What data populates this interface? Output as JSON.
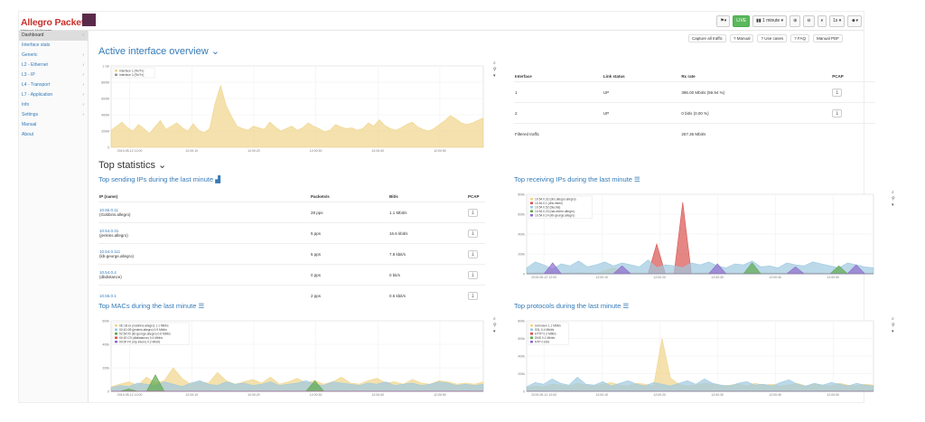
{
  "header": {
    "brand": "Allegro Packets",
    "tagline": "Network Multimeter",
    "buttons": [
      "⚑▾",
      "LIVE",
      "▮▮ 1 minute ▾",
      "⊕",
      "⊖",
      "⏸",
      "1s ▾",
      "☻▾"
    ]
  },
  "sidebar": {
    "items": [
      {
        "label": "Dashboard",
        "chev": "‹",
        "active": true
      },
      {
        "label": "Interface stats",
        "chev": ""
      },
      {
        "label": "Generic",
        "chev": "›"
      },
      {
        "label": "L2 - Ethernet",
        "chev": "›"
      },
      {
        "label": "L3 - IP",
        "chev": "›"
      },
      {
        "label": "L4 - Transport",
        "chev": "›"
      },
      {
        "label": "L7 - Application",
        "chev": "›"
      },
      {
        "label": "Info",
        "chev": "›"
      },
      {
        "label": "Settings",
        "chev": "›"
      },
      {
        "label": "Manual",
        "chev": ""
      },
      {
        "label": "About",
        "chev": ""
      }
    ]
  },
  "header_buttons": [
    "Capture all traffic",
    "? Manual",
    "? Use cases",
    "? FAQ",
    "Manual PDF"
  ],
  "overview": {
    "title": "Active interface overview ⌄",
    "legend": [
      "Interface 1 (Rx/Tx)",
      "Interface 2 (Rx/Tx)"
    ],
    "y_ticks": [
      "1 Gb",
      "800M",
      "600M",
      "400M",
      "200M",
      "0"
    ],
    "x_ticks": [
      "2019-05-12 12:00",
      "12:00:10",
      "12:00:20",
      "12:00:30",
      "12:00:40",
      "12:00:50"
    ],
    "columns": [
      "Interface",
      "Link status",
      "Rx rate",
      "PCAP"
    ],
    "rows": [
      {
        "iface": "1",
        "link": "UP",
        "rate": "395.00 Mbit/s (59.94 %)",
        "pcap": "⤓"
      },
      {
        "iface": "2",
        "link": "UP",
        "rate": "0 bit/s (0.00 %)",
        "pcap": "⤓"
      }
    ],
    "filtered_label": "Filtered traffic",
    "filtered_rate": "257.36 Mbit/s",
    "chart_data": {
      "type": "area",
      "series": [
        {
          "name": "Interface 1 (Rx/Tx)",
          "color": "#f0d48a",
          "values": [
            210,
            260,
            310,
            240,
            200,
            280,
            230,
            170,
            250,
            330,
            220,
            260,
            300,
            240,
            200,
            290,
            210,
            180,
            230,
            540,
            760,
            520,
            380,
            260,
            230,
            210,
            260,
            240,
            220,
            310,
            250,
            200,
            230,
            260,
            210,
            240,
            300,
            260,
            230,
            190,
            210,
            280,
            250,
            230,
            240,
            210,
            230,
            300,
            260,
            340,
            270,
            230,
            210,
            240,
            280,
            310,
            250,
            220,
            200,
            230,
            280,
            330,
            390,
            350,
            300,
            280,
            300,
            330,
            360
          ]
        }
      ],
      "ylim": [
        0,
        1000
      ]
    }
  },
  "top_stats": {
    "title": "Top statistics ⌄",
    "sending": {
      "title": "Top sending IPs during the last minute",
      "columns": [
        "IP (name)",
        "Packets/s",
        "Bit/s",
        "PCAP"
      ],
      "rows": [
        {
          "ip": "10.55.0.11",
          "name": "(Gobbins.allegro)",
          "pps": "28 pps",
          "bps": "1.1 Mbit/s"
        },
        {
          "ip": "10.54.0.31",
          "name": "(jenkins.allegro)",
          "pps": "5 pps",
          "bps": "16.6 kbit/s"
        },
        {
          "ip": "10.54.0.111",
          "name": "(kb-george.allegro)",
          "pps": "5 pps",
          "bps": "7.8 kbit/s"
        },
        {
          "ip": "10.54.0.4",
          "name": "(dbdistance)",
          "pps": "0 pps",
          "bps": "0 bit/s"
        },
        {
          "ip": "10.55.0.1",
          "name": "",
          "pps": "2 pps",
          "bps": "0.5 kbit/s"
        }
      ]
    },
    "receiving": {
      "title": "Top receiving IPs during the last minute",
      "legend": [
        "10.54.0.32 (dns.allegro.allegro)",
        "10.54.0.1 (dns.intern)",
        "10.54.0.52 (bla.bla)",
        "10.54.0.23 (nas.intern.allegro)",
        "10.54.0.14 (kb-george.allegro)"
      ],
      "y_ticks": [
        "800k",
        "600k",
        "400k",
        "200k",
        "0"
      ],
      "x_ticks": [
        "2019-05-12 12:00",
        "12:00:10",
        "12:00:20",
        "12:00:30",
        "12:00:40",
        "12:00:50"
      ],
      "chart_data": {
        "type": "area",
        "series": [
          {
            "name": "10.54.0.32",
            "color": "#f0d48a",
            "values": [
              5,
              8,
              12,
              10,
              6,
              9,
              14,
              8,
              5,
              30,
              60,
              20,
              10,
              8,
              6,
              5,
              7,
              9,
              6,
              5,
              8,
              10,
              12,
              9,
              7,
              6,
              8,
              10,
              8,
              6,
              7,
              9,
              11,
              8,
              6,
              5,
              7,
              9,
              8,
              6,
              5
            ]
          },
          {
            "name": "10.54.0.1",
            "color": "#d9534f",
            "values": [
              0,
              0,
              0,
              0,
              0,
              0,
              0,
              0,
              0,
              0,
              0,
              0,
              0,
              0,
              0,
              300,
              0,
              0,
              720,
              0,
              0,
              0,
              0,
              0,
              0,
              0,
              0,
              0,
              0,
              0,
              0,
              0,
              0,
              0,
              0,
              0,
              0,
              0,
              0,
              0,
              0
            ]
          },
          {
            "name": "10.54.0.52",
            "color": "#9ec9e0",
            "values": [
              60,
              120,
              90,
              50,
              100,
              80,
              130,
              70,
              90,
              120,
              80,
              110,
              90,
              70,
              140,
              60,
              90,
              80,
              60,
              110,
              90,
              120,
              80,
              60,
              100,
              90,
              130,
              70,
              80,
              60,
              110,
              90,
              80,
              120,
              100,
              80,
              60,
              110,
              90,
              70,
              60
            ]
          },
          {
            "name": "10.54.0.23",
            "color": "#5fa84e",
            "values": [
              0,
              0,
              0,
              0,
              0,
              0,
              0,
              0,
              0,
              0,
              0,
              0,
              0,
              0,
              0,
              0,
              0,
              0,
              0,
              0,
              0,
              0,
              0,
              0,
              0,
              0,
              110,
              0,
              0,
              0,
              0,
              0,
              0,
              0,
              0,
              0,
              80,
              0,
              0,
              0,
              0
            ]
          },
          {
            "name": "10.54.0.14",
            "color": "#8e6ccb",
            "values": [
              0,
              0,
              0,
              110,
              0,
              0,
              0,
              0,
              0,
              0,
              0,
              80,
              0,
              0,
              0,
              0,
              0,
              0,
              0,
              0,
              0,
              0,
              100,
              0,
              0,
              0,
              0,
              0,
              0,
              0,
              0,
              70,
              0,
              0,
              0,
              0,
              0,
              0,
              90,
              0,
              0
            ]
          }
        ],
        "ylim": [
          0,
          800
        ]
      }
    },
    "macs": {
      "title": "Top MACs during the last minute",
      "legend": [
        "0E:1B:xx (Gobbins.allegro) 1.1 Mbit/s",
        "00:1D:09 (jenkins.allegro) 0.9 Mbit/s",
        "52:54:00 (kb-george.allegro) 0.6 Mbit/s",
        "00:1E:C9 (dbdistance) 0.4 Mbit/s",
        "00:0F:F0 (ntp.intern) 0.2 Mbit/s"
      ],
      "y_ticks": [
        "600k",
        "400k",
        "200k",
        "0"
      ],
      "x_ticks": [
        "2019-05-12 12:00",
        "12:00:10",
        "12:00:20",
        "12:00:30",
        "12:00:40",
        "12:00:50"
      ],
      "chart_data": {
        "type": "area",
        "series": [
          {
            "name": "0E:1B",
            "color": "#f0d48a",
            "values": [
              40,
              60,
              80,
              50,
              120,
              70,
              90,
              200,
              110,
              60,
              80,
              70,
              160,
              90,
              60,
              80,
              100,
              70,
              120,
              60,
              80,
              110,
              70,
              90,
              60,
              80,
              120,
              70,
              60,
              90,
              110,
              70,
              80,
              60,
              100,
              70,
              60,
              90,
              80,
              60,
              70,
              60,
              80
            ]
          },
          {
            "name": "00:1D",
            "color": "#9ec9e0",
            "values": [
              30,
              50,
              40,
              70,
              60,
              50,
              80,
              60,
              40,
              70,
              90,
              60,
              50,
              80,
              60,
              70,
              50,
              60,
              80,
              50,
              60,
              70,
              90,
              60,
              50,
              80,
              70,
              60,
              50,
              70,
              60,
              80,
              50,
              60,
              70,
              50,
              60,
              80,
              70,
              50,
              60,
              50,
              60
            ]
          },
          {
            "name": "52:54",
            "color": "#5fa84e",
            "values": [
              0,
              0,
              20,
              0,
              0,
              140,
              0,
              0,
              0,
              0,
              0,
              0,
              0,
              0,
              0,
              0,
              0,
              0,
              0,
              0,
              0,
              0,
              0,
              90,
              0,
              0,
              0,
              0,
              0,
              0,
              0,
              0,
              0,
              0,
              0,
              0,
              0,
              0,
              0,
              0,
              0,
              0,
              0
            ]
          },
          {
            "name": "00:1E",
            "color": "#d9534f",
            "values": [
              0,
              0,
              0,
              0,
              0,
              0,
              0,
              0,
              0,
              0,
              0,
              0,
              0,
              0,
              0,
              0,
              0,
              0,
              0,
              0,
              0,
              0,
              0,
              0,
              0,
              0,
              0,
              0,
              0,
              0,
              0,
              0,
              0,
              0,
              0,
              0,
              0,
              0,
              0,
              0,
              0,
              0,
              0
            ]
          },
          {
            "name": "00:0F",
            "color": "#8e6ccb",
            "values": [
              0,
              0,
              0,
              0,
              0,
              0,
              0,
              0,
              0,
              0,
              0,
              0,
              0,
              0,
              0,
              0,
              0,
              0,
              0,
              0,
              0,
              0,
              0,
              0,
              0,
              0,
              0,
              0,
              0,
              0,
              0,
              0,
              0,
              0,
              0,
              0,
              0,
              0,
              0,
              0,
              0,
              0,
              0
            ]
          }
        ],
        "ylim": [
          0,
          600
        ]
      }
    },
    "protocols": {
      "title": "Top protocols during the last minute",
      "legend": [
        "Unknown 1.1 Mbit/s",
        "SSL 0.4 Mbit/s",
        "HTTP 0.2 Mbit/s",
        "DNS 0.1 Mbit/s",
        "NTP 0 bit/s"
      ],
      "y_ticks": [
        "800k",
        "600k",
        "400k",
        "200k",
        "0"
      ],
      "x_ticks": [
        "2019-05-12 12:00",
        "12:00:10",
        "12:00:20",
        "12:00:30",
        "12:00:40",
        "12:00:50"
      ],
      "chart_data": {
        "type": "area",
        "series": [
          {
            "name": "Unknown",
            "color": "#f0d48a",
            "values": [
              40,
              60,
              50,
              80,
              70,
              60,
              90,
              70,
              60,
              80,
              100,
              70,
              60,
              90,
              80,
              60,
              600,
              150,
              80,
              60,
              70,
              90,
              80,
              60,
              70,
              80,
              60,
              90,
              70,
              80,
              60,
              70,
              90,
              60,
              80,
              70,
              60,
              90,
              70,
              60,
              80,
              70
            ]
          },
          {
            "name": "SSL",
            "color": "#9ec9e0",
            "values": [
              50,
              100,
              80,
              140,
              90,
              70,
              160,
              80,
              70,
              110,
              60,
              90,
              120,
              80,
              60,
              100,
              80,
              60,
              90,
              120,
              80,
              140,
              90,
              70,
              60,
              90,
              110,
              70,
              80,
              60,
              100,
              130,
              80,
              60,
              90,
              70,
              100,
              80,
              60,
              90,
              70,
              60
            ]
          },
          {
            "name": "HTTP",
            "color": "#d9534f",
            "values": [
              0,
              0,
              0,
              0,
              0,
              0,
              0,
              0,
              0,
              0,
              0,
              0,
              0,
              0,
              0,
              0,
              0,
              0,
              0,
              0,
              0,
              0,
              0,
              0,
              0,
              0,
              0,
              0,
              0,
              0,
              0,
              0,
              0,
              0,
              0,
              0,
              0,
              0,
              0,
              0,
              0,
              0
            ]
          },
          {
            "name": "DNS",
            "color": "#5fa84e",
            "values": [
              0,
              0,
              0,
              0,
              0,
              0,
              0,
              0,
              0,
              0,
              0,
              0,
              0,
              0,
              0,
              0,
              0,
              0,
              0,
              0,
              0,
              0,
              0,
              0,
              0,
              0,
              0,
              0,
              0,
              0,
              0,
              0,
              0,
              0,
              0,
              0,
              0,
              0,
              0,
              0,
              0,
              0
            ]
          },
          {
            "name": "NTP",
            "color": "#8e6ccb",
            "values": [
              0,
              0,
              0,
              0,
              0,
              0,
              0,
              0,
              0,
              0,
              0,
              0,
              0,
              0,
              0,
              0,
              0,
              0,
              0,
              0,
              0,
              0,
              0,
              0,
              0,
              0,
              0,
              0,
              0,
              0,
              0,
              0,
              0,
              0,
              0,
              0,
              0,
              0,
              0,
              0,
              0,
              0
            ]
          }
        ],
        "ylim": [
          0,
          800
        ]
      }
    }
  }
}
